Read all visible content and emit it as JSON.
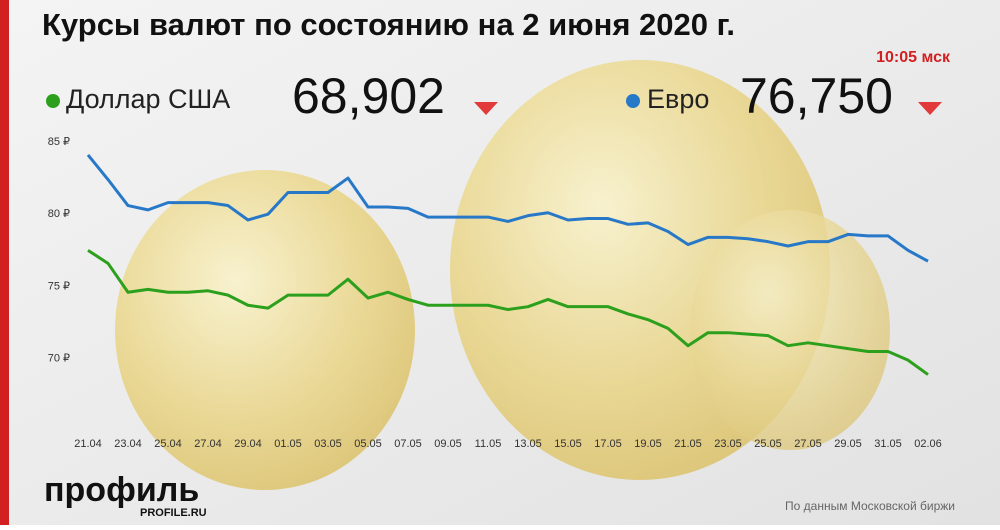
{
  "chart_data": {
    "type": "line",
    "title": "Курсы валют по состоянию на 2 июня 2020 г.",
    "time": "10:05 мск",
    "source": "По данным Московской биржи",
    "logo": "профиль",
    "logo_site": "PROFILE.RU",
    "categories": [
      "21.04",
      null,
      "23.04",
      null,
      "25.04",
      null,
      "27.04",
      null,
      "29.04",
      null,
      "01.05",
      null,
      "03.05",
      null,
      "05.05",
      null,
      "07.05",
      null,
      "09.05",
      null,
      "11.05",
      null,
      "13.05",
      null,
      "15.05",
      null,
      "17.05",
      null,
      "19.05",
      null,
      "21.05",
      null,
      "23.05",
      null,
      "25.05",
      null,
      "27.05",
      null,
      "29.05",
      null,
      "31.05",
      null,
      "02.06"
    ],
    "series": [
      {
        "name": "Доллар США",
        "color": "#2ca01c",
        "current": "68,902",
        "values": [
          77.5,
          76.6,
          74.6,
          74.8,
          74.6,
          74.6,
          74.7,
          74.4,
          73.7,
          73.5,
          74.4,
          74.4,
          74.4,
          75.5,
          74.2,
          74.6,
          74.1,
          73.7,
          73.7,
          73.7,
          73.7,
          73.4,
          73.6,
          74.1,
          73.6,
          73.6,
          73.6,
          73.1,
          72.7,
          72.1,
          70.9,
          71.8,
          71.8,
          71.7,
          71.6,
          70.9,
          71.1,
          70.9,
          70.7,
          70.5,
          70.5,
          69.9,
          68.9
        ]
      },
      {
        "name": "Евро",
        "color": "#2878c8",
        "current": "76,750",
        "values": [
          84.1,
          82.4,
          80.6,
          80.3,
          80.8,
          80.8,
          80.8,
          80.6,
          79.6,
          80.0,
          81.5,
          81.5,
          81.5,
          82.5,
          80.5,
          80.5,
          80.4,
          79.8,
          79.8,
          79.8,
          79.8,
          79.5,
          79.9,
          80.1,
          79.6,
          79.7,
          79.7,
          79.3,
          79.4,
          78.8,
          77.9,
          78.4,
          78.4,
          78.3,
          78.1,
          77.8,
          78.1,
          78.1,
          78.6,
          78.5,
          78.5,
          77.5,
          76.75
        ]
      }
    ],
    "ylim": [
      66,
      86
    ],
    "yticks": [
      {
        "value": 70,
        "label": "70 ₽"
      },
      {
        "value": 75,
        "label": "75 ₽"
      },
      {
        "value": 80,
        "label": "80 ₽"
      },
      {
        "value": 85,
        "label": "85 ₽"
      }
    ],
    "grid": false
  }
}
